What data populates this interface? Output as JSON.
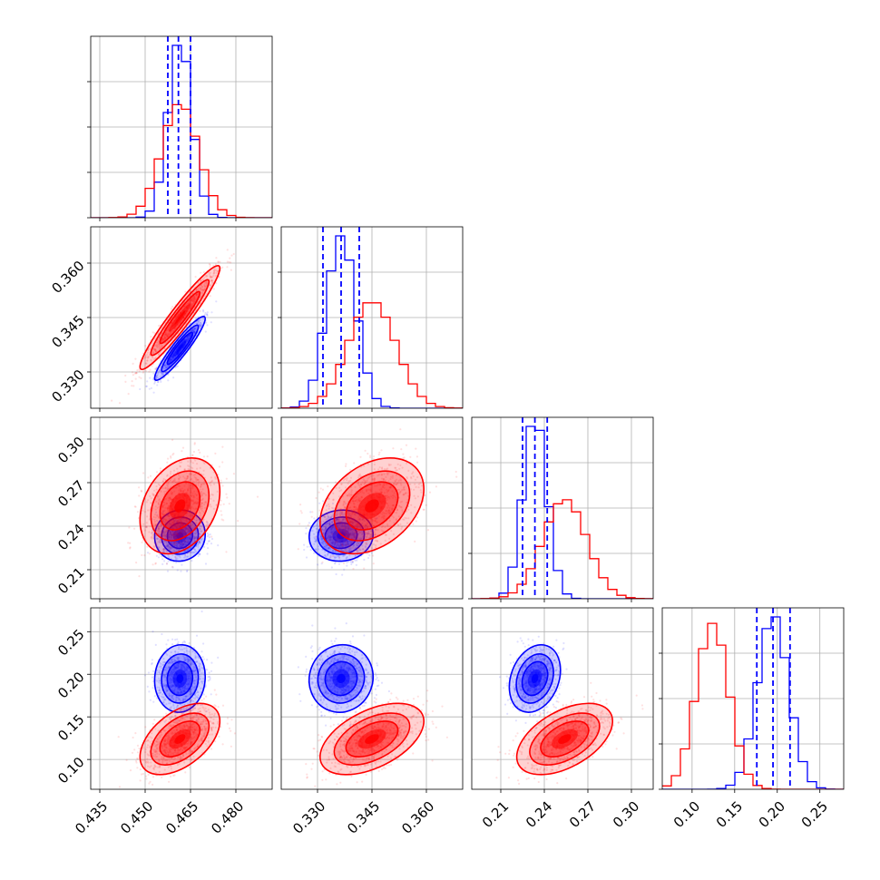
{
  "colors": {
    "series_a": "#0000ff",
    "series_b": "#ff0000",
    "grid": "#b0b0b0"
  },
  "chart_data": {
    "type": "corner",
    "grid": true,
    "parameters": [
      {
        "range": [
          0.432,
          0.492
        ],
        "ticks": [
          0.435,
          0.45,
          0.465,
          0.48
        ],
        "tick_labels": [
          "0.435",
          "0.450",
          "0.465",
          "0.480"
        ]
      },
      {
        "range": [
          0.32,
          0.37
        ],
        "ticks": [
          0.33,
          0.345,
          0.36
        ],
        "tick_labels": [
          "0.330",
          "0.345",
          "0.360"
        ]
      },
      {
        "range": [
          0.19,
          0.315
        ],
        "ticks": [
          0.21,
          0.24,
          0.27,
          0.3
        ],
        "tick_labels": [
          "0.21",
          "0.24",
          "0.27",
          "0.30"
        ]
      },
      {
        "range": [
          0.065,
          0.278
        ],
        "ticks": [
          0.1,
          0.15,
          0.2,
          0.25
        ],
        "tick_labels": [
          "0.10",
          "0.15",
          "0.20",
          "0.25"
        ]
      }
    ],
    "series": [
      {
        "color": "#0000ff",
        "mean": [
          0.4615,
          0.3365,
          0.2335,
          0.195
        ],
        "std": [
          0.0038,
          0.004,
          0.008,
          0.018
        ],
        "corr": [
          [
            1,
            0.93,
            0.05,
            0.05
          ],
          [
            0.93,
            1,
            0.05,
            0.05
          ],
          [
            0.05,
            0.05,
            1,
            0.25
          ],
          [
            0.05,
            0.05,
            0.25,
            1
          ]
        ],
        "quantiles": [
          [
            0.4575,
            0.461,
            0.465
          ],
          [
            0.3315,
            0.3365,
            0.3415
          ],
          [
            0.225,
            0.2335,
            0.242
          ],
          [
            0.176,
            0.195,
            0.215
          ]
        ]
      },
      {
        "color": "#ff0000",
        "mean": [
          0.4615,
          0.345,
          0.254,
          0.124
        ],
        "std": [
          0.006,
          0.0065,
          0.015,
          0.019
        ],
        "corr": [
          [
            1,
            0.95,
            0.3,
            0.5
          ],
          [
            0.95,
            1,
            0.35,
            0.5
          ],
          [
            0.3,
            0.35,
            1,
            0.5
          ],
          [
            0.5,
            0.5,
            0.5,
            1
          ]
        ],
        "quantiles": []
      }
    ]
  }
}
